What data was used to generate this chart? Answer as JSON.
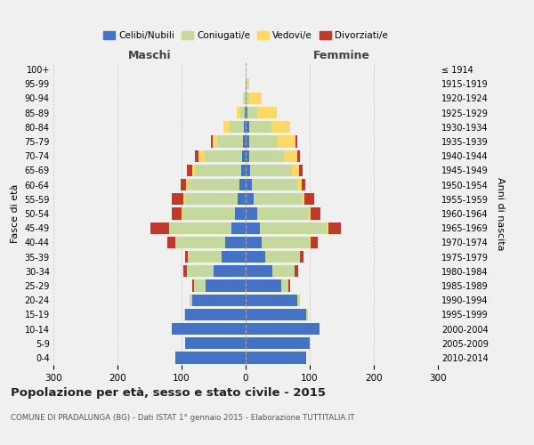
{
  "age_groups": [
    "0-4",
    "5-9",
    "10-14",
    "15-19",
    "20-24",
    "25-29",
    "30-34",
    "35-39",
    "40-44",
    "45-49",
    "50-54",
    "55-59",
    "60-64",
    "65-69",
    "70-74",
    "75-79",
    "80-84",
    "85-89",
    "90-94",
    "95-99",
    "100+"
  ],
  "birth_years": [
    "2010-2014",
    "2005-2009",
    "2000-2004",
    "1995-1999",
    "1990-1994",
    "1985-1989",
    "1980-1984",
    "1975-1979",
    "1970-1974",
    "1965-1969",
    "1960-1964",
    "1955-1959",
    "1950-1954",
    "1945-1949",
    "1940-1944",
    "1935-1939",
    "1930-1934",
    "1925-1929",
    "1920-1924",
    "1915-1919",
    "≤ 1914"
  ],
  "colors": {
    "celibe": "#4472c4",
    "coniugato": "#c5d89d",
    "vedovo": "#ffd966",
    "divorziato": "#c0392b"
  },
  "xlim": 300,
  "title": "Popolazione per età, sesso e stato civile - 2015",
  "subtitle": "COMUNE DI PRADALUNGA (BG) - Dati ISTAT 1° gennaio 2015 - Elaborazione TUTTITALIA.IT",
  "ylabel_left": "Fasce di età",
  "ylabel_right": "Anni di nascita",
  "xlabel_maschi": "Maschi",
  "xlabel_femmine": "Femmine",
  "legend_labels": [
    "Celibi/Nubili",
    "Coniugati/e",
    "Vedovi/e",
    "Divorziati/e"
  ],
  "bg_color": "#f0f0f0",
  "grid_color": "#cccccc",
  "m_cel": [
    110,
    95,
    115,
    95,
    83,
    63,
    50,
    38,
    32,
    22,
    17,
    12,
    10,
    7,
    6,
    4,
    3,
    1,
    0,
    0,
    0
  ],
  "m_con": [
    0,
    0,
    0,
    1,
    4,
    18,
    42,
    52,
    78,
    97,
    82,
    83,
    80,
    72,
    58,
    40,
    22,
    8,
    2,
    0,
    0
  ],
  "m_ved": [
    0,
    0,
    0,
    0,
    0,
    0,
    0,
    0,
    0,
    0,
    1,
    2,
    3,
    5,
    10,
    8,
    10,
    5,
    2,
    0,
    0
  ],
  "m_div": [
    0,
    0,
    0,
    0,
    0,
    2,
    5,
    5,
    12,
    30,
    15,
    18,
    8,
    8,
    5,
    2,
    0,
    0,
    0,
    0,
    0
  ],
  "f_nub": [
    95,
    100,
    115,
    95,
    80,
    55,
    42,
    30,
    25,
    22,
    18,
    12,
    10,
    7,
    5,
    5,
    5,
    3,
    2,
    1,
    0
  ],
  "f_con": [
    0,
    0,
    0,
    2,
    5,
    12,
    35,
    55,
    75,
    105,
    80,
    75,
    70,
    65,
    55,
    45,
    35,
    15,
    3,
    0,
    0
  ],
  "f_ved": [
    0,
    0,
    0,
    0,
    0,
    0,
    0,
    0,
    1,
    2,
    3,
    5,
    8,
    12,
    20,
    28,
    30,
    30,
    20,
    5,
    0
  ],
  "f_div": [
    0,
    0,
    0,
    0,
    0,
    2,
    5,
    5,
    12,
    20,
    15,
    15,
    5,
    5,
    5,
    2,
    0,
    0,
    0,
    0,
    0
  ]
}
